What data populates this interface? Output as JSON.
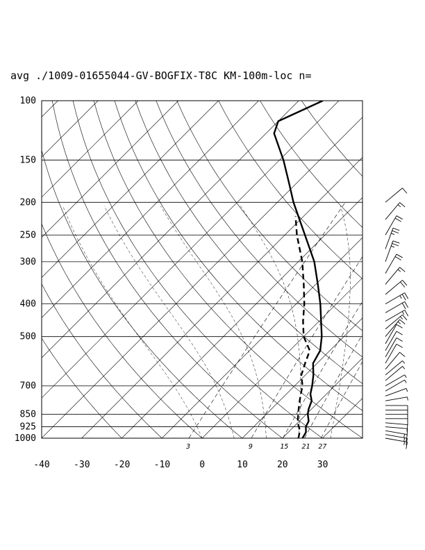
{
  "chart_data": {
    "type": "line",
    "title": "avg ./1009-01655044-GV-BOGFIX-T8C KM-100m-loc n=",
    "y_scale": "log-pressure",
    "ylim": [
      1000,
      100
    ],
    "y_ticks": [
      "100",
      "150",
      "200",
      "250",
      "300",
      "400",
      "500",
      "700",
      "850",
      "925",
      "1000"
    ],
    "y_tick_values": [
      100,
      150,
      200,
      250,
      300,
      400,
      500,
      700,
      850,
      925,
      1000
    ],
    "x_ticks": [
      "-40",
      "-30",
      "-20",
      "-10",
      "0",
      "10",
      "20",
      "30"
    ],
    "x_tick_values": [
      -40,
      -30,
      -20,
      -10,
      0,
      10,
      20,
      30
    ],
    "xlim": [
      -40,
      40
    ],
    "skew_degrees": 45,
    "grid": true,
    "mixing_ratio_labels": [
      "3",
      "9",
      "15",
      "21",
      "27"
    ],
    "mixing_ratio_values": [
      3,
      9,
      15,
      21,
      27
    ],
    "series": [
      {
        "style": "solid",
        "variable": "temperature",
        "points": [
          {
            "p": 1000,
            "t": 25.0
          },
          {
            "p": 960,
            "t": 24.4
          },
          {
            "p": 925,
            "t": 23.0
          },
          {
            "p": 890,
            "t": 22.3
          },
          {
            "p": 850,
            "t": 20.4
          },
          {
            "p": 820,
            "t": 19.3
          },
          {
            "p": 775,
            "t": 18.0
          },
          {
            "p": 740,
            "t": 16.0
          },
          {
            "p": 700,
            "t": 14.4
          },
          {
            "p": 650,
            "t": 12.0
          },
          {
            "p": 600,
            "t": 9.0
          },
          {
            "p": 550,
            "t": 7.6
          },
          {
            "p": 500,
            "t": 4.5
          },
          {
            "p": 450,
            "t": 0.5
          },
          {
            "p": 400,
            "t": -4.0
          },
          {
            "p": 350,
            "t": -9.5
          },
          {
            "p": 300,
            "t": -16.0
          },
          {
            "p": 250,
            "t": -25.0
          },
          {
            "p": 200,
            "t": -36.0
          },
          {
            "p": 175,
            "t": -42.0
          },
          {
            "p": 150,
            "t": -49.0
          },
          {
            "p": 125,
            "t": -58.0
          },
          {
            "p": 115,
            "t": -60.0
          },
          {
            "p": 100,
            "t": -54.0
          }
        ]
      },
      {
        "style": "dashed",
        "variable": "dewpoint",
        "points": [
          {
            "p": 1000,
            "t": 24.0
          },
          {
            "p": 950,
            "t": 22.5
          },
          {
            "p": 900,
            "t": 20.0
          },
          {
            "p": 850,
            "t": 18.0
          },
          {
            "p": 800,
            "t": 16.0
          },
          {
            "p": 750,
            "t": 14.0
          },
          {
            "p": 700,
            "t": 12.0
          },
          {
            "p": 650,
            "t": 9.0
          },
          {
            "p": 600,
            "t": 7.0
          },
          {
            "p": 550,
            "t": 5.0
          },
          {
            "p": 500,
            "t": 0.0
          },
          {
            "p": 450,
            "t": -4.0
          },
          {
            "p": 400,
            "t": -8.0
          },
          {
            "p": 350,
            "t": -13.0
          },
          {
            "p": 300,
            "t": -19.0
          },
          {
            "p": 250,
            "t": -27.0
          },
          {
            "p": 220,
            "t": -32.0
          }
        ]
      }
    ],
    "wind_barbs": {
      "levels_hpa": [
        1000,
        975,
        950,
        925,
        900,
        875,
        850,
        825,
        800,
        775,
        750,
        725,
        700,
        675,
        650,
        625,
        600,
        575,
        550,
        525,
        500,
        475,
        450,
        425,
        400,
        375,
        350,
        325,
        300,
        275,
        250,
        225,
        200
      ],
      "direction_deg": [
        100,
        100,
        100,
        95,
        95,
        90,
        90,
        90,
        90,
        80,
        70,
        60,
        60,
        50,
        50,
        40,
        30,
        30,
        30,
        30,
        40,
        50,
        60,
        60,
        60,
        50,
        40,
        30,
        20,
        20,
        30,
        40,
        50
      ],
      "speed_kt": [
        15,
        15,
        15,
        10,
        10,
        10,
        10,
        10,
        10,
        5,
        5,
        5,
        5,
        5,
        5,
        10,
        10,
        10,
        10,
        10,
        15,
        15,
        15,
        20,
        25,
        20,
        15,
        20,
        25,
        25,
        20,
        15,
        10
      ]
    }
  }
}
